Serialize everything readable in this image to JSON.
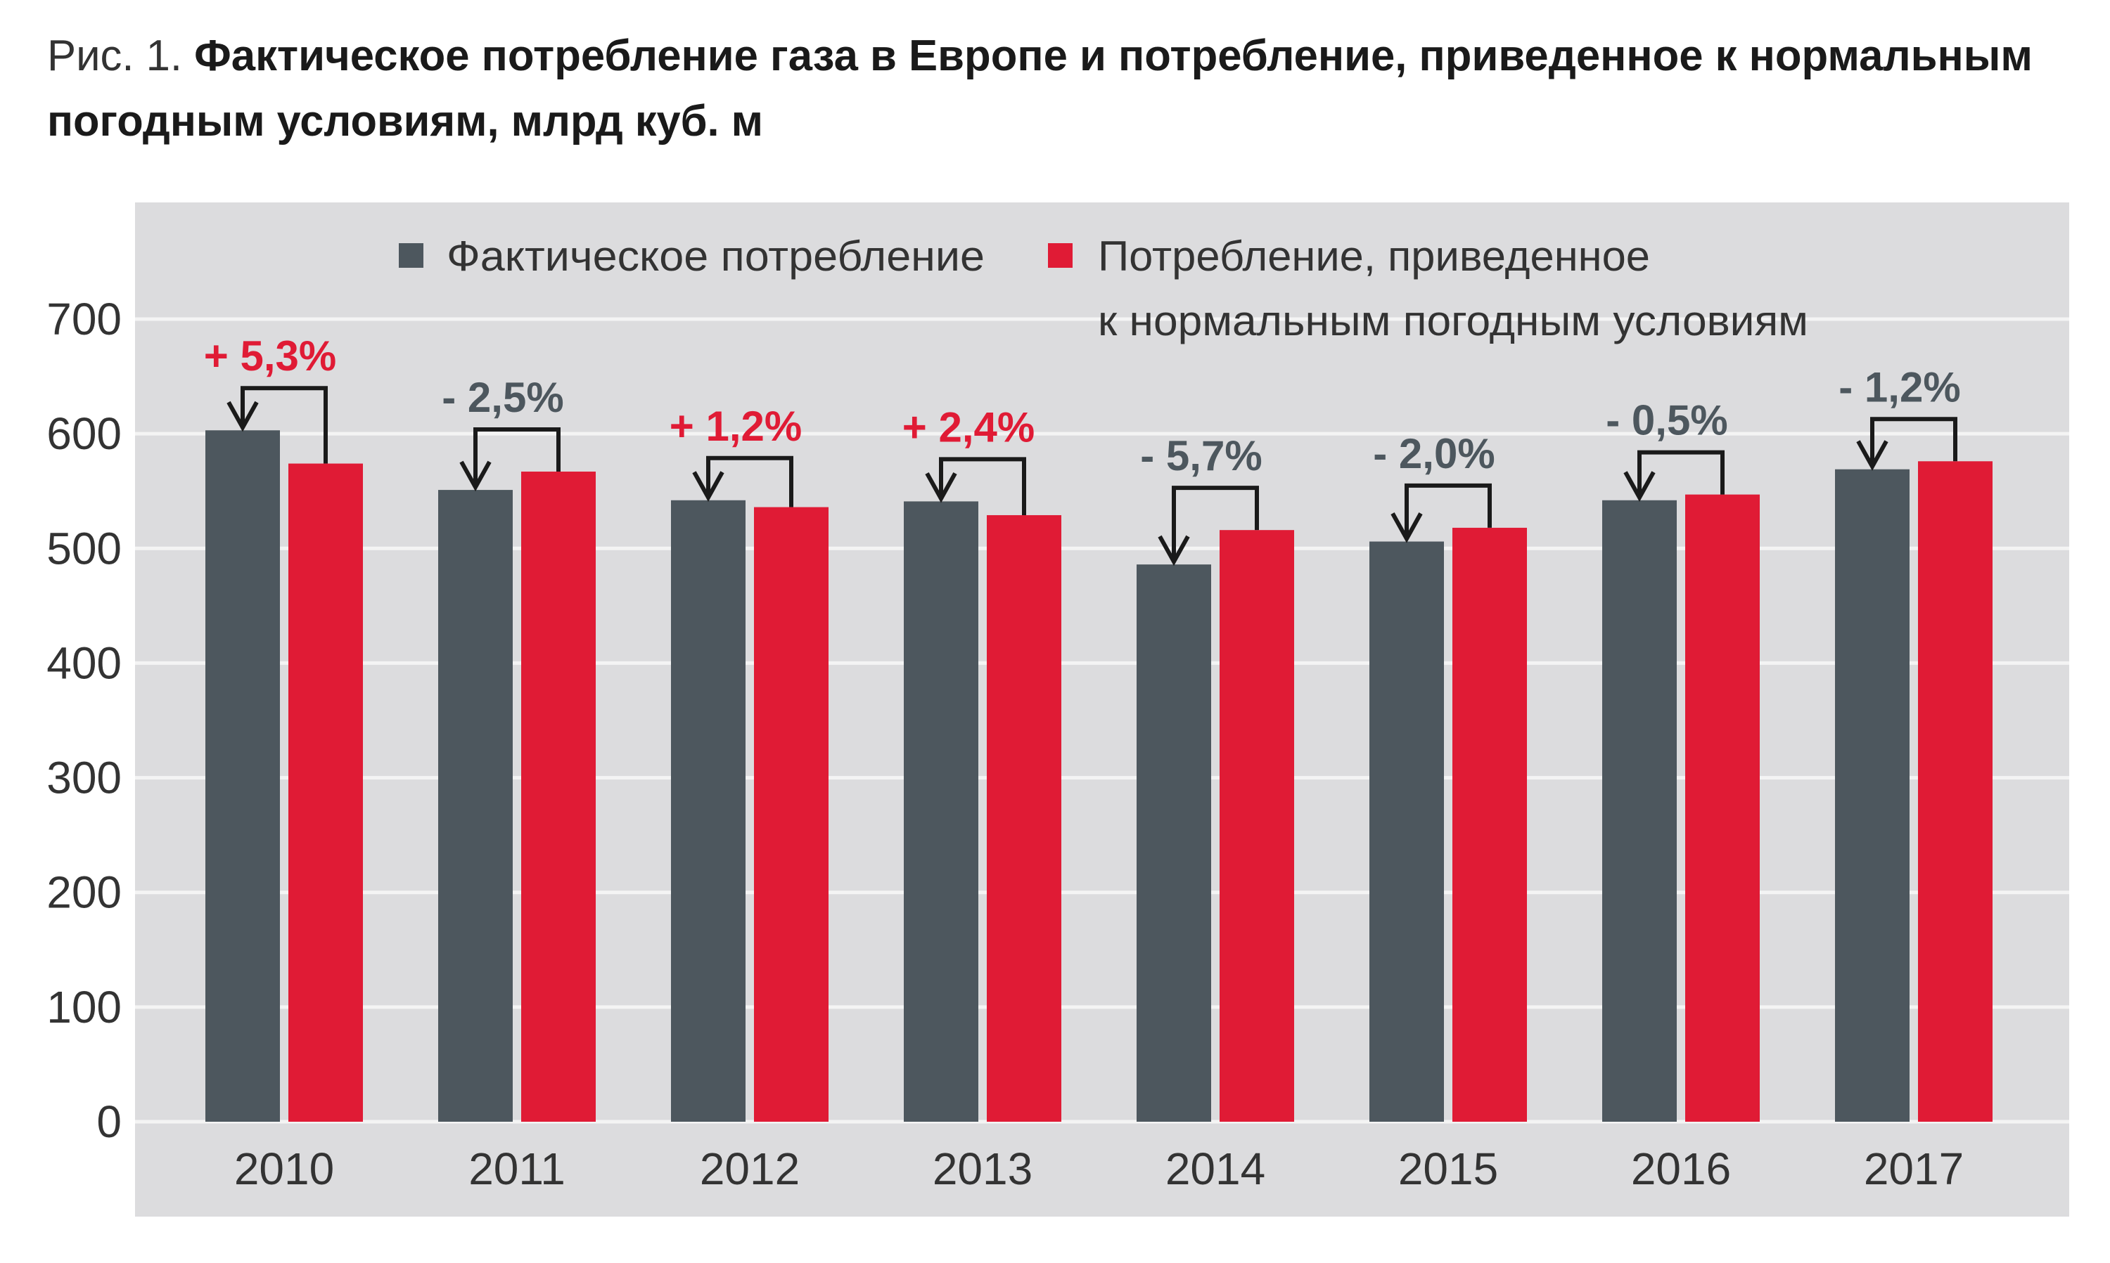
{
  "title": {
    "prefix": "Рис. 1. ",
    "line1": "Фактическое потребление газа в Европе и потребление, приведенное к нормальным",
    "line2": "погодным условиям, млрд куб. м"
  },
  "legend": {
    "actual": "Фактическое потребление",
    "normalized_line1": "Потребление, приведенное",
    "normalized_line2": "к нормальным погодным условиям"
  },
  "colors": {
    "actual": "#4d575e",
    "normalized": "#e01b35",
    "panel": "#dcdcde",
    "positive_label": "#e01b35",
    "negative_label": "#4d575e"
  },
  "chart_data": {
    "type": "bar",
    "title": "Фактическое потребление газа в Европе и потребление, приведенное к нормальным погодным условиям, млрд куб. м",
    "categories": [
      "2010",
      "2011",
      "2012",
      "2013",
      "2014",
      "2015",
      "2016",
      "2017"
    ],
    "series": [
      {
        "name": "Фактическое потребление",
        "values": [
          603,
          551,
          542,
          541,
          486,
          506,
          542,
          569
        ]
      },
      {
        "name": "Потребление, приведенное к нормальным погодным условиям",
        "values": [
          574,
          567,
          536,
          529,
          516,
          518,
          547,
          576
        ]
      }
    ],
    "annotations": [
      "+ 5,3%",
      "- 2,5%",
      "+ 1,2%",
      "+ 2,4%",
      "- 5,7%",
      "- 2,0%",
      "- 0,5%",
      "- 1,2%"
    ],
    "yticks": [
      "0",
      "100",
      "200",
      "300",
      "400",
      "500",
      "600",
      "700"
    ],
    "ylim": [
      0,
      700
    ],
    "grid": true,
    "legend_position": "top"
  }
}
